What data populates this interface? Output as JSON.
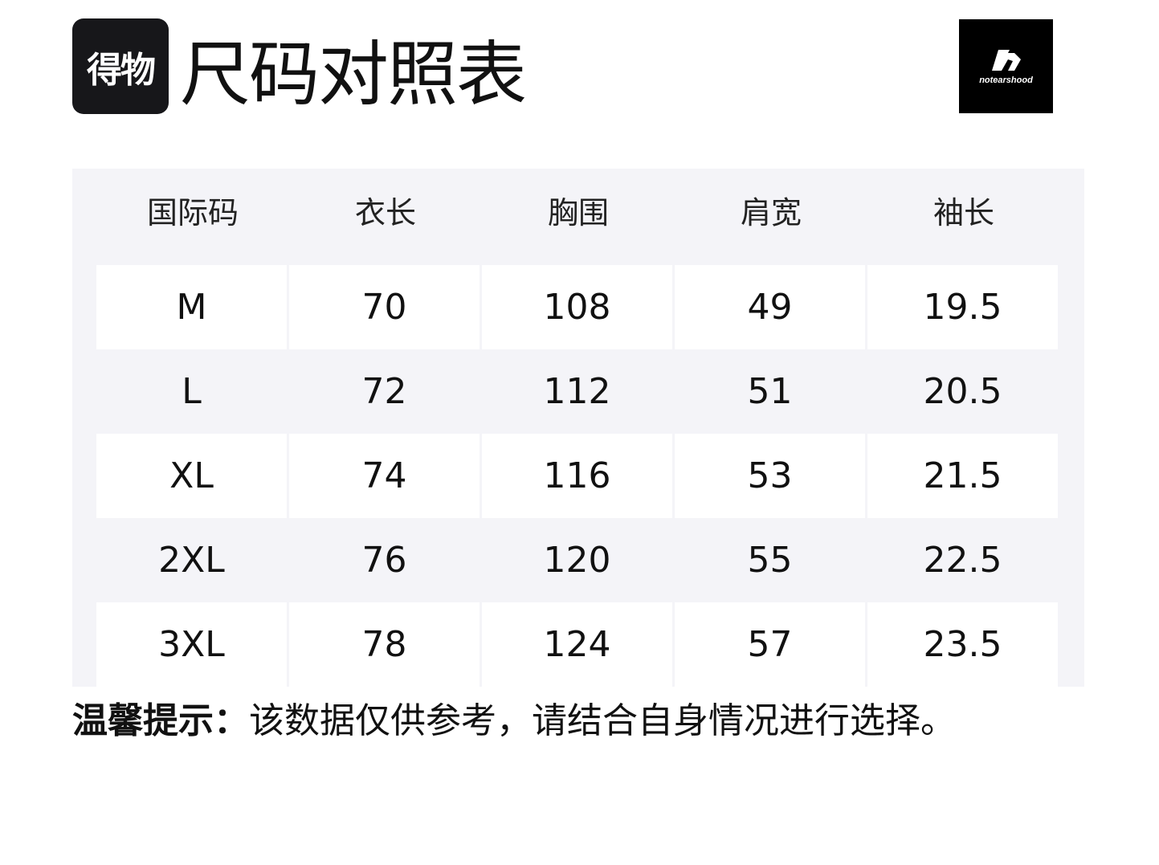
{
  "brand_logo": "得物",
  "title": "尺码对照表",
  "partner_logo": "notearshood",
  "table": {
    "headers": [
      "国际码",
      "衣长",
      "胸围",
      "肩宽",
      "袖长"
    ],
    "rows": [
      [
        "M",
        "70",
        "108",
        "49",
        "19.5"
      ],
      [
        "L",
        "72",
        "112",
        "51",
        "20.5"
      ],
      [
        "XL",
        "74",
        "116",
        "53",
        "21.5"
      ],
      [
        "2XL",
        "76",
        "120",
        "55",
        "22.5"
      ],
      [
        "3XL",
        "78",
        "124",
        "57",
        "23.5"
      ]
    ]
  },
  "note": {
    "label": "温馨提示：",
    "text": "该数据仅供参考，请结合自身情况进行选择。"
  }
}
